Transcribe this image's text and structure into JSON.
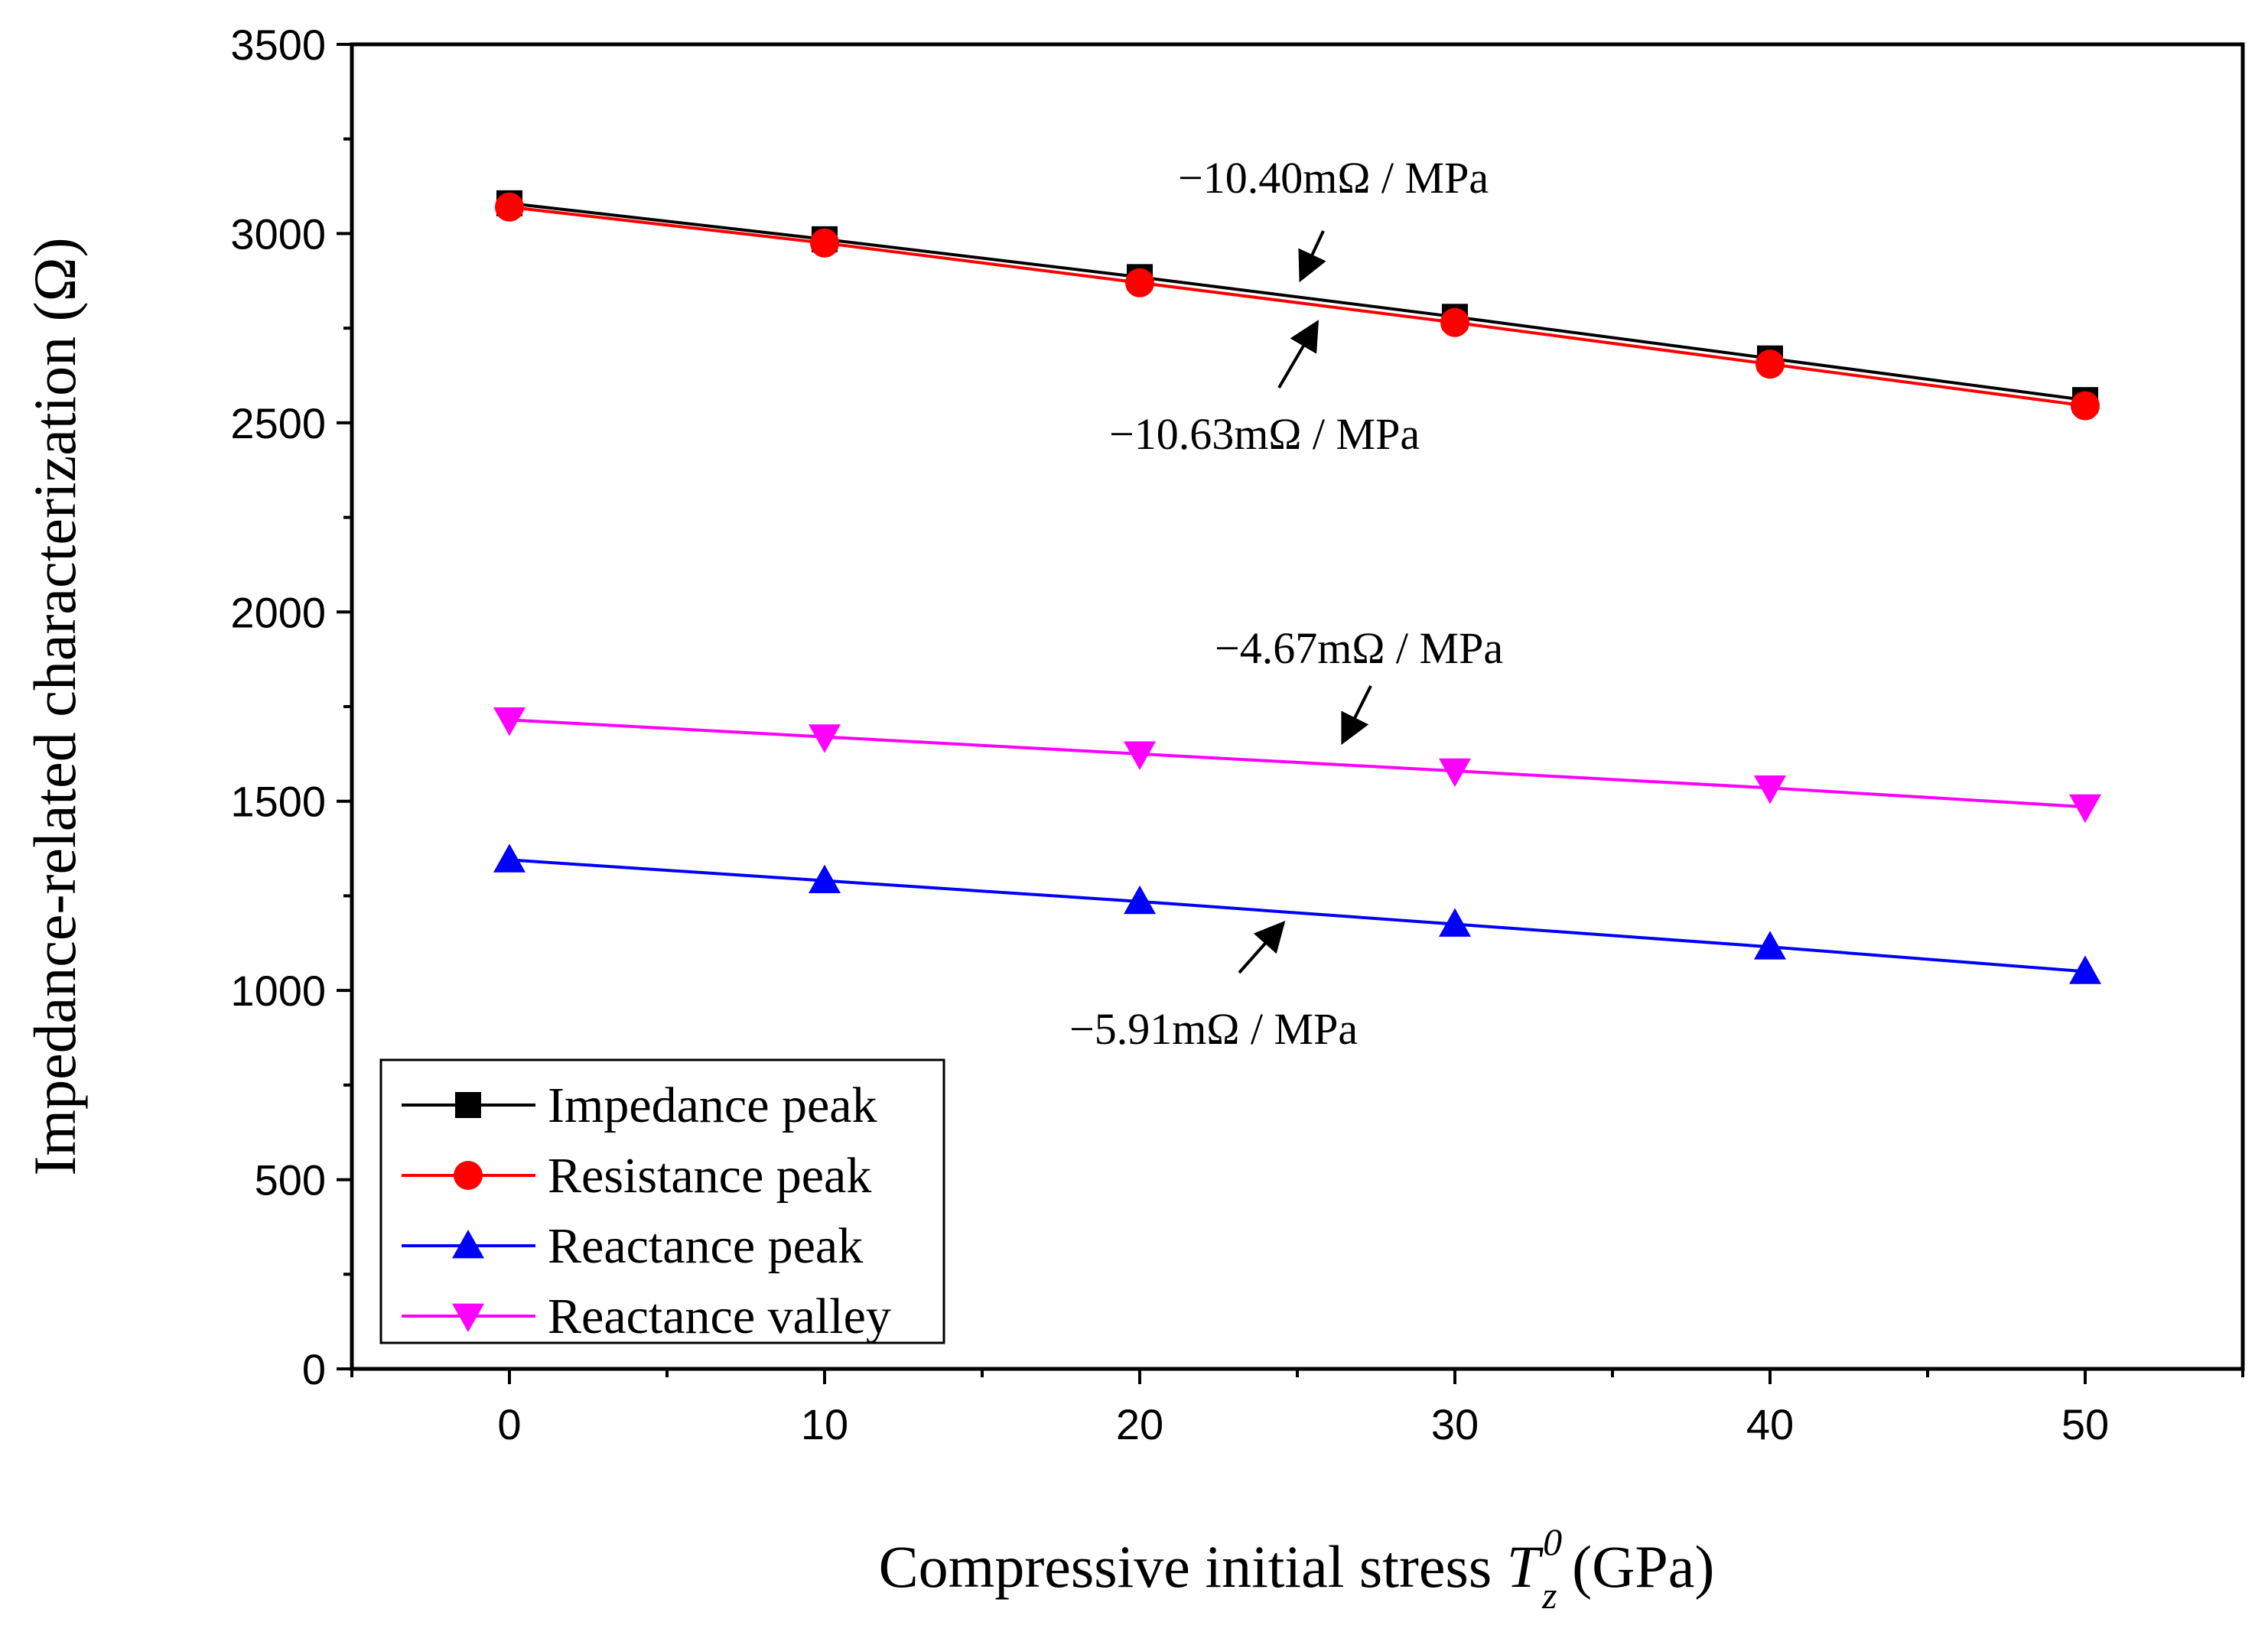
{
  "chart_data": {
    "type": "line",
    "title": "",
    "xlabel": {
      "prefix": "Compressive initial stress ",
      "symbol": "T",
      "superscript": "0",
      "subscript": "z",
      "suffix": " (GPa)"
    },
    "ylabel": "Impedance-related characterization (Ω)",
    "xlim": [
      -5,
      55
    ],
    "ylim": [
      0,
      3500
    ],
    "xticks": [
      0,
      10,
      20,
      30,
      40,
      50
    ],
    "yticks": [
      0,
      500,
      1000,
      1500,
      2000,
      2500,
      3000,
      3500
    ],
    "x": [
      0,
      10,
      20,
      30,
      40,
      50
    ],
    "grid": false,
    "legend_position": "bottom-left",
    "series": [
      {
        "name": "Impedance peak",
        "color": "#000000",
        "marker": "square",
        "values": [
          3080,
          2985,
          2885,
          2780,
          2670,
          2560
        ]
      },
      {
        "name": "Resistance peak",
        "color": "#ff0000",
        "marker": "circle",
        "values": [
          3070,
          2975,
          2870,
          2765,
          2655,
          2545
        ]
      },
      {
        "name": "Reactance peak",
        "color": "#0000ff",
        "marker": "triangle-up",
        "values": [
          1345,
          1290,
          1235,
          1175,
          1115,
          1050
        ]
      },
      {
        "name": "Reactance valley",
        "color": "#ff00ff",
        "marker": "triangle-down",
        "values": [
          1715,
          1670,
          1625,
          1580,
          1535,
          1485
        ]
      }
    ],
    "annotations": [
      {
        "text": "−10.40mΩ / MPa"
      },
      {
        "text": "−10.63mΩ / MPa"
      },
      {
        "text": "−4.67mΩ / MPa"
      },
      {
        "text": "−5.91mΩ / MPa"
      }
    ]
  }
}
